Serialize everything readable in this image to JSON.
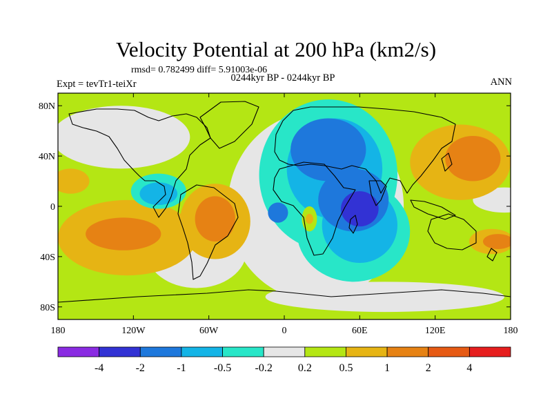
{
  "chart_data": {
    "type": "heatmap",
    "title": "Velocity Potential at 200 hPa (km2/s)",
    "stats_label": "rmsd= 0.782499 diff= 5.91003e-06",
    "period_label": "0244kyr BP - 0244kyr BP",
    "experiment_label": "Expt = tevTr1-teiXr",
    "season_label": "ANN",
    "x_axis": {
      "range": [
        -180,
        180
      ],
      "ticks": [
        {
          "value": -180,
          "label": "180"
        },
        {
          "value": -120,
          "label": "120W"
        },
        {
          "value": -60,
          "label": "60W"
        },
        {
          "value": 0,
          "label": "0"
        },
        {
          "value": 60,
          "label": "60E"
        },
        {
          "value": 120,
          "label": "120E"
        },
        {
          "value": 180,
          "label": "180"
        }
      ]
    },
    "y_axis": {
      "range": [
        -90,
        90
      ],
      "ticks": [
        {
          "value": 80,
          "label": "80N"
        },
        {
          "value": 40,
          "label": "40N"
        },
        {
          "value": 0,
          "label": "0"
        },
        {
          "value": -40,
          "label": "40S"
        },
        {
          "value": -80,
          "label": "80S"
        }
      ]
    },
    "colorbar": {
      "colors": [
        "#8a2be2",
        "#3232d4",
        "#1e78dc",
        "#14b4e6",
        "#28e6c8",
        "#e6e6e6",
        "#b4e614",
        "#e6b414",
        "#e68214",
        "#e65a14",
        "#e61e1e"
      ],
      "labels": [
        "-4",
        "-2",
        "-1",
        "-0.5",
        "-0.2",
        "0.2",
        "0.5",
        "1",
        "2",
        "4"
      ]
    },
    "regions": [
      {
        "name": "background",
        "level": 0.3,
        "shape": "full"
      },
      {
        "name": "neutral-n-pacific",
        "level": 0,
        "center": [
          -130,
          55
        ],
        "radius": [
          55,
          25
        ]
      },
      {
        "name": "neutral-s-pacific",
        "level": 0,
        "center": [
          -70,
          -35
        ],
        "radius": [
          40,
          30
        ]
      },
      {
        "name": "neutral-tropics-east",
        "level": 0,
        "center": [
          175,
          5
        ],
        "radius": [
          25,
          10
        ]
      },
      {
        "name": "neutral-atlantic-band",
        "level": 0,
        "center": [
          25,
          0
        ],
        "radius": [
          70,
          75
        ]
      },
      {
        "name": "neutral-s-band",
        "level": 0,
        "center": [
          80,
          -72
        ],
        "radius": [
          95,
          12
        ]
      },
      {
        "name": "positive-s-pacific",
        "level": 0.8,
        "center": [
          -125,
          -25
        ],
        "radius": [
          55,
          30
        ]
      },
      {
        "name": "positive-s-america",
        "level": 0.8,
        "center": [
          -55,
          -12
        ],
        "radius": [
          28,
          30
        ]
      },
      {
        "name": "positive-w-pacific",
        "level": 0.8,
        "center": [
          140,
          35
        ],
        "radius": [
          40,
          30
        ]
      },
      {
        "name": "positive-e-pacific-n",
        "level": 0.6,
        "center": [
          -170,
          20
        ],
        "radius": [
          15,
          10
        ]
      },
      {
        "name": "positive-e-pacific-s",
        "level": 0.6,
        "center": [
          165,
          -28
        ],
        "radius": [
          18,
          10
        ]
      },
      {
        "name": "strong-s-pacific",
        "level": 1.5,
        "center": [
          -128,
          -22
        ],
        "radius": [
          30,
          13
        ]
      },
      {
        "name": "strong-s-america",
        "level": 1.5,
        "center": [
          -55,
          -10
        ],
        "radius": [
          16,
          18
        ]
      },
      {
        "name": "strong-w-pacific",
        "level": 1.5,
        "center": [
          150,
          38
        ],
        "radius": [
          22,
          18
        ]
      },
      {
        "name": "strong-e-pacific-s",
        "level": 1.5,
        "center": [
          170,
          -28
        ],
        "radius": [
          12,
          6
        ]
      },
      {
        "name": "negative-atlantic-africa",
        "level": -0.3,
        "center": [
          35,
          25
        ],
        "radius": [
          55,
          60
        ]
      },
      {
        "name": "negative-n-america",
        "level": -0.3,
        "center": [
          -100,
          12
        ],
        "radius": [
          22,
          14
        ]
      },
      {
        "name": "negative-indian",
        "level": -0.3,
        "center": [
          55,
          -20
        ],
        "radius": [
          45,
          40
        ]
      },
      {
        "name": "neg-mid-n-america",
        "level": -0.7,
        "center": [
          -100,
          10
        ],
        "radius": [
          15,
          9
        ]
      },
      {
        "name": "neg-mid-asia",
        "level": -0.7,
        "center": [
          40,
          30
        ],
        "radius": [
          38,
          40
        ]
      },
      {
        "name": "neg-mid-indian",
        "level": -0.7,
        "center": [
          60,
          -15
        ],
        "radius": [
          30,
          30
        ]
      },
      {
        "name": "neg-strong-europe",
        "level": -1.5,
        "center": [
          35,
          45
        ],
        "radius": [
          30,
          25
        ]
      },
      {
        "name": "neg-strong-africa",
        "level": -1.5,
        "center": [
          55,
          5
        ],
        "radius": [
          28,
          25
        ]
      },
      {
        "name": "neg-strong-w-africa",
        "level": -1.5,
        "center": [
          -5,
          -5
        ],
        "radius": [
          8,
          8
        ]
      },
      {
        "name": "neg-max-indian",
        "level": -3,
        "center": [
          60,
          -2
        ],
        "radius": [
          15,
          14
        ]
      },
      {
        "name": "positive-s-africa",
        "level": 0.3,
        "center": [
          20,
          -10
        ],
        "radius": [
          6,
          10
        ]
      },
      {
        "name": "strong-s-africa",
        "level": 0.7,
        "center": [
          20,
          -10
        ],
        "radius": [
          3,
          4
        ]
      }
    ]
  }
}
